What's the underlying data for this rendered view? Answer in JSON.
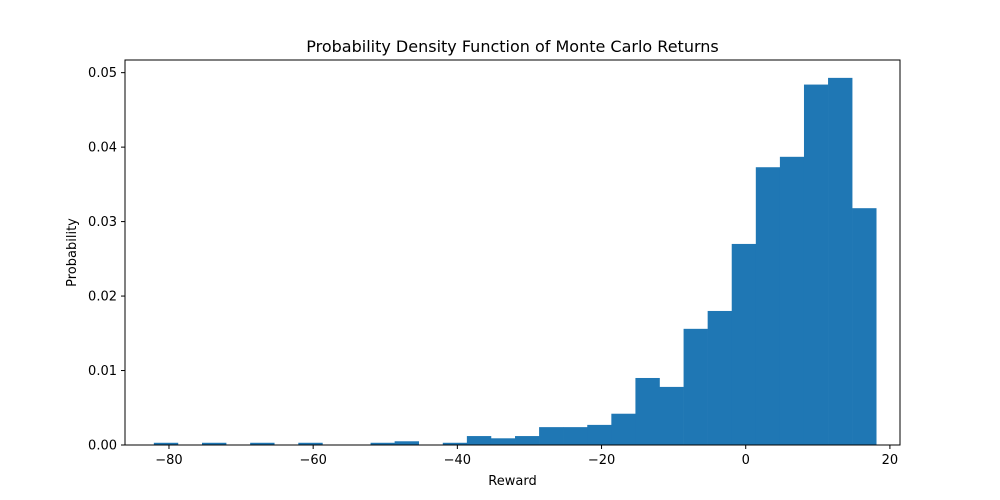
{
  "chart_data": {
    "type": "bar",
    "title": "Probability Density Function of Monte Carlo Returns",
    "xlabel": "Reward",
    "ylabel": "Probability",
    "xlim": [
      -86.1,
      21.4
    ],
    "ylim": [
      0,
      0.0517
    ],
    "bar_color": "#1f77b4",
    "xticks": [
      -80,
      -60,
      -40,
      -20,
      0,
      20
    ],
    "yticks": [
      0.0,
      0.01,
      0.02,
      0.03,
      0.04,
      0.05
    ],
    "ytick_labels": [
      "0.00",
      "0.01",
      "0.02",
      "0.03",
      "0.04",
      "0.05"
    ],
    "bin_start": -82.1,
    "bin_width": 3.34,
    "values": [
      0.0003,
      0.0,
      0.0003,
      0.0,
      0.0003,
      0.0,
      0.0003,
      0.0,
      0.0,
      0.0003,
      0.0005,
      0.0,
      0.0003,
      0.0012,
      0.0009,
      0.0012,
      0.0024,
      0.0024,
      0.0027,
      0.0042,
      0.009,
      0.0078,
      0.0156,
      0.018,
      0.027,
      0.0373,
      0.0387,
      0.0484,
      0.0493,
      0.0318
    ]
  }
}
